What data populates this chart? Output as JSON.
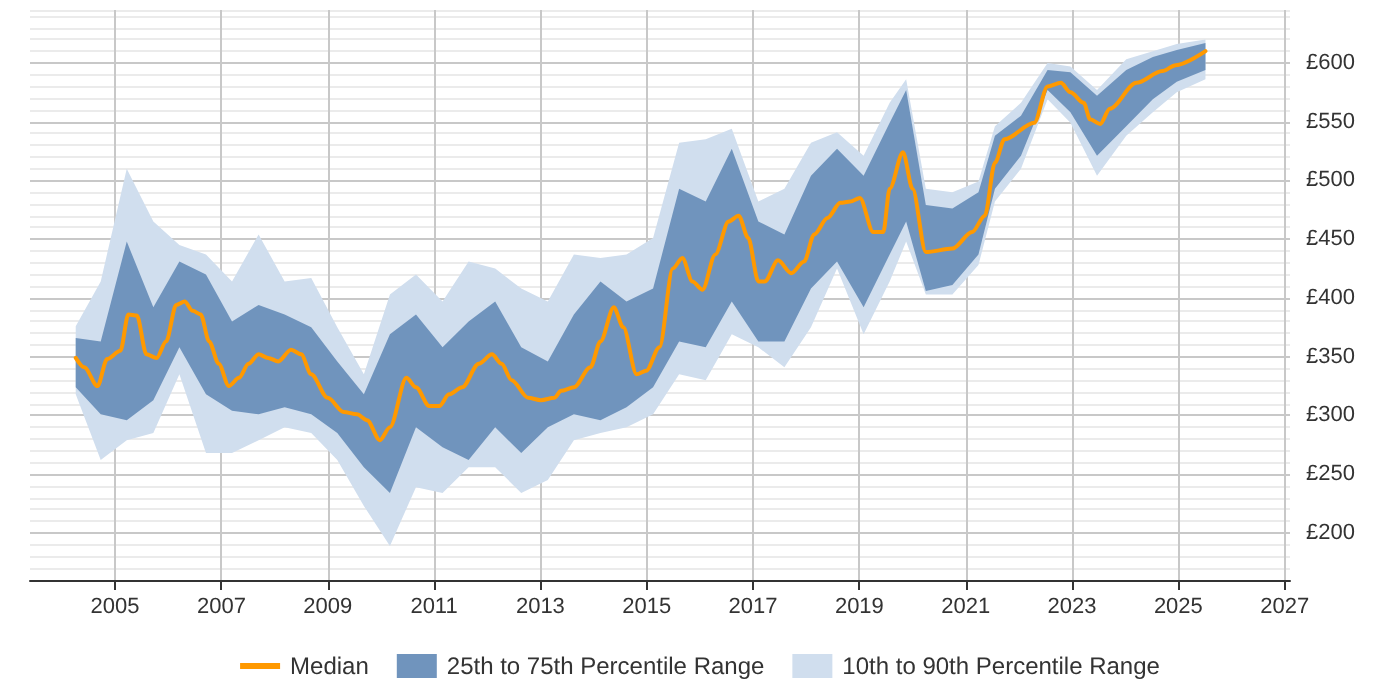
{
  "chart_data": {
    "type": "line",
    "xlim": [
      2003.4,
      2027.1
    ],
    "xticks": [
      2005,
      2007,
      2009,
      2011,
      2013,
      2015,
      2017,
      2019,
      2021,
      2023,
      2025,
      2027
    ],
    "ylim": [
      160,
      645
    ],
    "yticks": [
      {
        "value": 170,
        "label": null
      },
      {
        "value": 180,
        "label": null
      },
      {
        "value": 190,
        "label": null
      },
      {
        "value": 200,
        "label": "£200"
      },
      {
        "value": 210,
        "label": null
      },
      {
        "value": 220,
        "label": null
      },
      {
        "value": 230,
        "label": null
      },
      {
        "value": 240,
        "label": null
      },
      {
        "value": 250,
        "label": "£250"
      },
      {
        "value": 260,
        "label": null
      },
      {
        "value": 270,
        "label": null
      },
      {
        "value": 280,
        "label": null
      },
      {
        "value": 290,
        "label": null
      },
      {
        "value": 300,
        "label": "£300"
      },
      {
        "value": 310,
        "label": null
      },
      {
        "value": 320,
        "label": null
      },
      {
        "value": 330,
        "label": null
      },
      {
        "value": 340,
        "label": null
      },
      {
        "value": 350,
        "label": "£350"
      },
      {
        "value": 360,
        "label": null
      },
      {
        "value": 370,
        "label": null
      },
      {
        "value": 380,
        "label": null
      },
      {
        "value": 390,
        "label": null
      },
      {
        "value": 400,
        "label": "£400"
      },
      {
        "value": 410,
        "label": null
      },
      {
        "value": 420,
        "label": null
      },
      {
        "value": 430,
        "label": null
      },
      {
        "value": 440,
        "label": null
      },
      {
        "value": 450,
        "label": "£450"
      },
      {
        "value": 460,
        "label": null
      },
      {
        "value": 470,
        "label": null
      },
      {
        "value": 480,
        "label": null
      },
      {
        "value": 490,
        "label": null
      },
      {
        "value": 500,
        "label": "£500"
      },
      {
        "value": 510,
        "label": null
      },
      {
        "value": 520,
        "label": null
      },
      {
        "value": 530,
        "label": null
      },
      {
        "value": 540,
        "label": null
      },
      {
        "value": 550,
        "label": "£550"
      },
      {
        "value": 560,
        "label": null
      },
      {
        "value": 570,
        "label": null
      },
      {
        "value": 580,
        "label": null
      },
      {
        "value": 590,
        "label": null
      },
      {
        "value": 600,
        "label": "£600"
      },
      {
        "value": 610,
        "label": null
      },
      {
        "value": 620,
        "label": null
      },
      {
        "value": 630,
        "label": null
      },
      {
        "value": 640,
        "label": null
      }
    ],
    "grid": true,
    "legend": "bottom",
    "marker": "none",
    "line_style": "solid",
    "series": [
      {
        "name": "Median",
        "color": "#ff9900",
        "x": [
          2004.26,
          2004.42,
          2004.67,
          2004.85,
          2005.1,
          2005.25,
          2005.41,
          2005.59,
          2005.78,
          2005.96,
          2006.15,
          2006.31,
          2006.46,
          2006.61,
          2006.77,
          2006.95,
          2007.14,
          2007.33,
          2007.51,
          2007.7,
          2007.88,
          2008.07,
          2008.31,
          2008.5,
          2008.69,
          2009.0,
          2009.3,
          2009.55,
          2009.74,
          2009.98,
          2010.17,
          2010.48,
          2010.66,
          2010.91,
          2011.1,
          2011.28,
          2011.53,
          2011.84,
          2012.09,
          2012.27,
          2012.46,
          2012.77,
          2013.01,
          2013.26,
          2013.39,
          2013.63,
          2013.94,
          2014.13,
          2014.38,
          2014.56,
          2014.81,
          2014.99,
          2015.24,
          2015.49,
          2015.67,
          2015.86,
          2016.05,
          2016.29,
          2016.54,
          2016.73,
          2016.91,
          2017.1,
          2017.22,
          2017.47,
          2017.72,
          2017.96,
          2018.15,
          2018.4,
          2018.64,
          2018.83,
          2019.01,
          2019.26,
          2019.45,
          2019.57,
          2019.82,
          2020.0,
          2020.25,
          2020.75,
          2021.12,
          2021.36,
          2021.55,
          2021.73,
          2022.29,
          2022.54,
          2022.79,
          2022.97,
          2023.22,
          2023.34,
          2023.53,
          2023.71,
          2024.21,
          2024.7,
          2024.95,
          2025.51
        ],
        "values": [
          349,
          341,
          325,
          348,
          355,
          386,
          385,
          352,
          349,
          363,
          394,
          397,
          389,
          386,
          363,
          344,
          325,
          332,
          344,
          352,
          349,
          346,
          356,
          352,
          335,
          315,
          303,
          301,
          296,
          279,
          290,
          332,
          324,
          308,
          308,
          318,
          324,
          344,
          352,
          344,
          330,
          315,
          313,
          315,
          321,
          324,
          341,
          363,
          392,
          375,
          335,
          338,
          358,
          425,
          434,
          414,
          407,
          437,
          465,
          470,
          451,
          414,
          414,
          432,
          421,
          431,
          454,
          468,
          481,
          482,
          485,
          456,
          456,
          493,
          524,
          493,
          439,
          442,
          456,
          470,
          515,
          535,
          549,
          580,
          583,
          575,
          566,
          552,
          548,
          561,
          583,
          593,
          598,
          610
        ]
      },
      {
        "name": "25th to 75th Percentile Range",
        "type": "area",
        "color": "#7094bd",
        "x": [
          2004.26,
          2004.73,
          2005.22,
          2005.72,
          2006.21,
          2006.71,
          2007.2,
          2007.7,
          2008.19,
          2008.69,
          2009.18,
          2009.68,
          2010.17,
          2010.66,
          2011.16,
          2011.65,
          2012.15,
          2012.64,
          2013.14,
          2013.63,
          2014.13,
          2014.62,
          2015.12,
          2015.61,
          2016.11,
          2016.6,
          2017.1,
          2017.59,
          2018.09,
          2018.58,
          2019.08,
          2019.57,
          2019.88,
          2020.25,
          2020.75,
          2021.24,
          2021.55,
          2022.04,
          2022.54,
          2022.97,
          2023.47,
          2024.02,
          2024.52,
          2024.97,
          2025.51
        ],
        "values": [
          null,
          null,
          null,
          null,
          null,
          null,
          null,
          null,
          null,
          null,
          null,
          null,
          null,
          null,
          null,
          null,
          null,
          null,
          null,
          null,
          null,
          null,
          null,
          null,
          null,
          null,
          null,
          null,
          null,
          null,
          null,
          null,
          null,
          null,
          null,
          null,
          null,
          null,
          null,
          null,
          null,
          null,
          null,
          null,
          null
        ],
        "lower": [
          324,
          301,
          296,
          313,
          358,
          318,
          304,
          301,
          307,
          301,
          285,
          256,
          234,
          290,
          273,
          262,
          290,
          268,
          290,
          301,
          296,
          307,
          324,
          363,
          358,
          397,
          363,
          363,
          408,
          431,
          392,
          437,
          465,
          406,
          411,
          437,
          493,
          521,
          577,
          558,
          521,
          546,
          569,
          584,
          594
        ],
        "upper": [
          366,
          363,
          448,
          392,
          431,
          420,
          380,
          394,
          386,
          375,
          346,
          318,
          369,
          386,
          358,
          380,
          397,
          358,
          346,
          386,
          414,
          397,
          408,
          493,
          482,
          527,
          465,
          454,
          504,
          527,
          504,
          549,
          577,
          479,
          476,
          490,
          538,
          555,
          594,
          592,
          572,
          594,
          605,
          611,
          617
        ]
      },
      {
        "name": "10th to 90th Percentile Range",
        "type": "area",
        "color": "#d0deee",
        "x": [
          2004.26,
          2004.73,
          2005.22,
          2005.72,
          2006.21,
          2006.71,
          2007.2,
          2007.7,
          2008.19,
          2008.69,
          2009.18,
          2009.68,
          2010.17,
          2010.66,
          2011.16,
          2011.65,
          2012.15,
          2012.64,
          2013.14,
          2013.63,
          2014.13,
          2014.62,
          2015.12,
          2015.61,
          2016.11,
          2016.6,
          2017.1,
          2017.59,
          2018.09,
          2018.58,
          2019.08,
          2019.57,
          2019.88,
          2020.25,
          2020.75,
          2021.24,
          2021.55,
          2022.04,
          2022.54,
          2022.97,
          2023.47,
          2024.02,
          2024.52,
          2024.97,
          2025.51
        ],
        "values": [
          null,
          null,
          null,
          null,
          null,
          null,
          null,
          null,
          null,
          null,
          null,
          null,
          null,
          null,
          null,
          null,
          null,
          null,
          null,
          null,
          null,
          null,
          null,
          null,
          null,
          null,
          null,
          null,
          null,
          null,
          null,
          null,
          null,
          null,
          null,
          null,
          null,
          null,
          null,
          null,
          null,
          null,
          null,
          null,
          null
        ],
        "lower": [
          318,
          262,
          279,
          285,
          335,
          268,
          268,
          279,
          290,
          285,
          262,
          223,
          189,
          239,
          234,
          256,
          256,
          234,
          245,
          279,
          285,
          290,
          301,
          335,
          330,
          369,
          358,
          341,
          375,
          425,
          369,
          414,
          448,
          403,
          403,
          428,
          482,
          510,
          569,
          549,
          504,
          538,
          558,
          575,
          586
        ],
        "upper": [
          376,
          414,
          510,
          465,
          445,
          437,
          414,
          454,
          414,
          417,
          375,
          335,
          403,
          420,
          397,
          431,
          425,
          408,
          397,
          437,
          434,
          437,
          451,
          532,
          535,
          544,
          482,
          493,
          532,
          541,
          521,
          566,
          586,
          493,
          490,
          499,
          546,
          566,
          600,
          597,
          577,
          603,
          610,
          616,
          620
        ]
      }
    ]
  }
}
